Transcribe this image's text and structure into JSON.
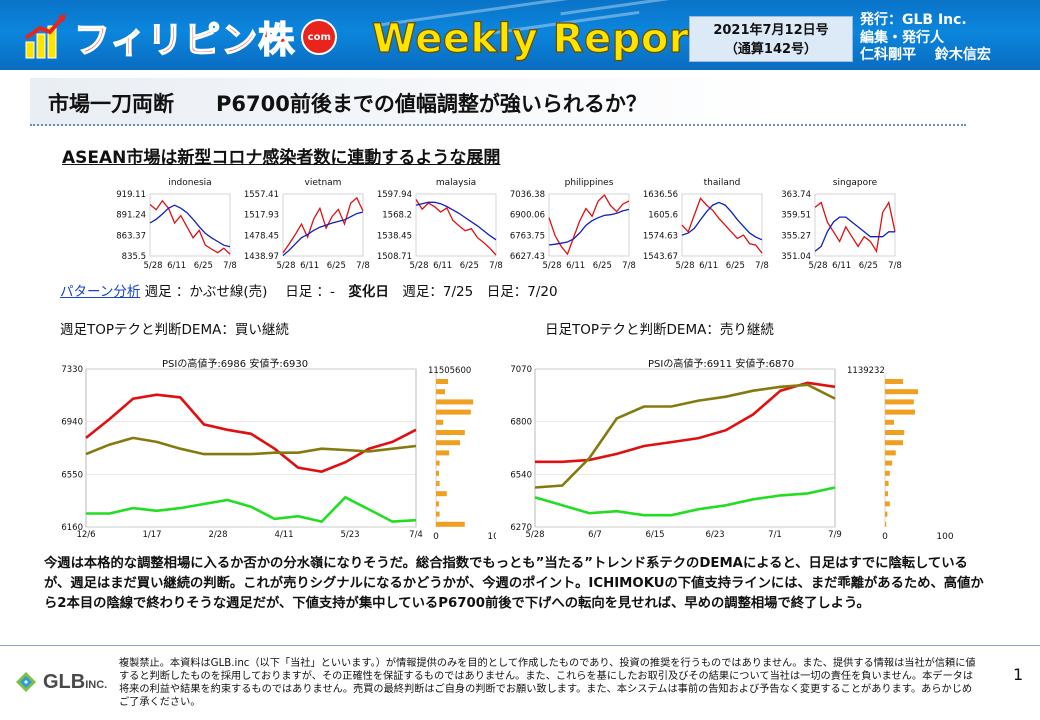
{
  "header": {
    "logo_text": "フィリピン株",
    "logo_badge": "com",
    "report_title": "Weekly Report",
    "issue_date": "2021年7月12日号",
    "issue_number": "（通算142号）",
    "publisher_line1": "発行：GLB Inc.",
    "publisher_line2": "編集・発行人",
    "publisher_line3": "仁科剛平　 鈴木信宏"
  },
  "headline": "市場一刀両断　　P6700前後までの値幅調整が強いられるか？",
  "section_title": "ASEAN市場は新型コロナ感染者数に連動するような展開",
  "colors": {
    "red": "#e01010",
    "blue": "#1020c0",
    "olive": "#857a10",
    "green": "#22dd22",
    "orange": "#f0a020",
    "banner": "#0b7fd6"
  },
  "pattern": {
    "link": "パターン分析",
    "weekly_label": " 週足 ：かぶせ線(売)　 日足 ：-　",
    "change_label": "変化日",
    "change_dates": "　週足：7/25　日足：7/20"
  },
  "panels": {
    "left_label": "週足TOPテクと判断DEMA：買い継続",
    "right_label": "日足TOPテクと判断DEMA：売り継続",
    "left_psi": "PSIの高値予:6986 安値予:6930",
    "right_psi": "PSIの高値予:6911 安値予:6870"
  },
  "chart_data": [
    {
      "type": "line",
      "title": "indonesia",
      "x_ticks": [
        "5/28",
        "6/11",
        "6/25",
        "7/8"
      ],
      "y_ticks": [
        "919.11",
        "891.24",
        "863.37",
        "835.5"
      ],
      "ylim": [
        835.5,
        919.11
      ],
      "series": [
        {
          "values": [
            905,
            898,
            910,
            900,
            880,
            890,
            875,
            860,
            870,
            850,
            845,
            840,
            846,
            838
          ]
        },
        {
          "values": [
            880,
            885,
            892,
            900,
            904,
            900,
            894,
            885,
            875,
            866,
            860,
            855,
            850,
            848
          ]
        }
      ]
    },
    {
      "type": "line",
      "title": "vietnam",
      "x_ticks": [
        "5/28",
        "6/11",
        "6/25",
        "7/8"
      ],
      "y_ticks": [
        "1557.41",
        "1517.93",
        "1478.45",
        "1438.97"
      ],
      "ylim": [
        1438.97,
        1557.41
      ],
      "series": [
        {
          "values": [
            1445,
            1462,
            1480,
            1500,
            1475,
            1510,
            1530,
            1492,
            1515,
            1528,
            1500,
            1540,
            1550,
            1525
          ]
        },
        {
          "values": [
            1440,
            1450,
            1462,
            1474,
            1480,
            1488,
            1494,
            1498,
            1502,
            1505,
            1508,
            1514,
            1520,
            1523
          ]
        }
      ]
    },
    {
      "type": "line",
      "title": "malaysia",
      "x_ticks": [
        "5/28",
        "6/11",
        "6/25",
        "7/8"
      ],
      "y_ticks": [
        "1597.94",
        "1568.2",
        "1538.45",
        "1508.71"
      ],
      "ylim": [
        1508.71,
        1597.94
      ],
      "series": [
        {
          "values": [
            1590,
            1576,
            1585,
            1580,
            1572,
            1578,
            1560,
            1552,
            1545,
            1548,
            1535,
            1528,
            1520,
            1510
          ]
        },
        {
          "values": [
            1582,
            1584,
            1586,
            1586,
            1584,
            1580,
            1575,
            1570,
            1564,
            1558,
            1552,
            1545,
            1538,
            1532
          ]
        }
      ]
    },
    {
      "type": "line",
      "title": "philippines",
      "x_ticks": [
        "5/28",
        "6/11",
        "6/25",
        "7/8"
      ],
      "y_ticks": [
        "7036.38",
        "6900.06",
        "6763.75",
        "6627.43"
      ],
      "ylim": [
        6627.43,
        7036.38
      ],
      "series": [
        {
          "values": [
            6880,
            6760,
            6690,
            6640,
            6750,
            6860,
            6940,
            6890,
            6990,
            7030,
            6960,
            6920,
            6970,
            6990
          ]
        },
        {
          "values": [
            6700,
            6705,
            6712,
            6720,
            6740,
            6780,
            6830,
            6860,
            6880,
            6895,
            6900,
            6910,
            6925,
            6935
          ]
        }
      ]
    },
    {
      "type": "line",
      "title": "thailand",
      "x_ticks": [
        "5/28",
        "6/11",
        "6/25",
        "7/8"
      ],
      "y_ticks": [
        "1636.56",
        "1605.6",
        "1574.63",
        "1543.67"
      ],
      "ylim": [
        1543.67,
        1636.56
      ],
      "series": [
        {
          "values": [
            1590,
            1580,
            1605,
            1630,
            1620,
            1612,
            1600,
            1590,
            1580,
            1570,
            1575,
            1562,
            1560,
            1548
          ]
        },
        {
          "values": [
            1575,
            1578,
            1585,
            1598,
            1610,
            1620,
            1624,
            1620,
            1610,
            1598,
            1588,
            1578,
            1572,
            1568
          ]
        }
      ]
    },
    {
      "type": "line",
      "title": "singapore",
      "x_ticks": [
        "5/28",
        "6/11",
        "6/25",
        "7/8"
      ],
      "y_ticks": [
        "363.74",
        "359.51",
        "355.27",
        "351.04"
      ],
      "ylim": [
        351.04,
        363.74
      ],
      "series": [
        {
          "values": [
            361,
            362,
            358,
            356,
            354,
            357,
            355,
            353,
            355,
            354,
            352,
            360,
            362,
            356
          ]
        },
        {
          "values": [
            352,
            353,
            356,
            358,
            359,
            359,
            358,
            357,
            356,
            355,
            355,
            355,
            356,
            356
          ]
        }
      ]
    },
    {
      "type": "line",
      "title": "",
      "x_ticks": [
        "12/6",
        "1/17",
        "2/28",
        "4/11",
        "5/23",
        "7/4"
      ],
      "y_ticks": [
        "7330",
        "6940",
        "6550",
        "6160"
      ],
      "right_tick": "11505600",
      "ylim": [
        6160,
        7330
      ],
      "series": [
        {
          "values": [
            6820,
            6960,
            7110,
            7140,
            7120,
            6920,
            6880,
            6850,
            6740,
            6600,
            6570,
            6640,
            6740,
            6790,
            6880
          ]
        },
        {
          "values": [
            6700,
            6770,
            6820,
            6790,
            6740,
            6700,
            6700,
            6700,
            6710,
            6710,
            6740,
            6730,
            6720,
            6740,
            6760
          ]
        },
        {
          "values": [
            6260,
            6260,
            6300,
            6280,
            6300,
            6330,
            6360,
            6310,
            6220,
            6240,
            6200,
            6380,
            6290,
            6200,
            6210
          ]
        }
      ],
      "volume_profile": [
        20,
        15,
        62,
        58,
        12,
        48,
        40,
        22,
        6,
        5,
        6,
        18,
        5,
        6,
        48
      ]
    },
    {
      "type": "line",
      "title": "",
      "x_ticks": [
        "5/28",
        "6/7",
        "6/15",
        "6/23",
        "7/1",
        "7/9"
      ],
      "y_ticks": [
        "7070",
        "6800",
        "6540",
        "6270"
      ],
      "right_tick": "1139232",
      "ylim": [
        6270,
        7070
      ],
      "series": [
        {
          "values": [
            6600,
            6600,
            6610,
            6640,
            6680,
            6700,
            6720,
            6760,
            6840,
            6960,
            7000,
            6980
          ]
        },
        {
          "values": [
            6470,
            6480,
            6620,
            6820,
            6880,
            6880,
            6910,
            6930,
            6960,
            6980,
            6990,
            6920
          ]
        },
        {
          "values": [
            6420,
            6380,
            6340,
            6350,
            6330,
            6330,
            6360,
            6380,
            6410,
            6430,
            6440,
            6470
          ]
        }
      ],
      "volume_profile": [
        30,
        55,
        48,
        50,
        15,
        32,
        30,
        18,
        12,
        8,
        6,
        5,
        8,
        4,
        2
      ]
    }
  ],
  "body_text": "今週は本格的な調整相場に入るか否かの分水嶺になりそうだ。総合指数でもっとも”当たる”トレンド系テクのDEMAによると、日足はすでに陰転しているが、週足はまだ買い継続の判断。これが売りシグナルになるかどうかが、今週のポイント。ICHIMOKUの下値支持ラインには、まだ乖離があるため、高値から2本目の陰線で終わりそうな週足だが、下値支持が集中しているP6700前後で下げへの転向を見せれば、早めの調整相場で終了しよう。",
  "footer": {
    "company": "GLB",
    "company_suffix": "INC.",
    "disclaimer": "複製禁止。本資料はGLB.inc（以下「当社」といいます。）が情報提供のみを目的として作成したものであり、投資の推奨を行うものではありません。また、提供する情報は当社が信頼に値すると判断したものを採用しておりますが、その正確性を保証するものではありません。また、これらを基にしたお取引及びその結果について当社は一切の責任を負いません。本データは将来の利益や結果を約束するものではありません。売買の最終判断はご自身の判断でお願い致します。また、本システムは事前の告知および予告なく変更することがあります。あらかじめご了承ください。",
    "page_number": "1"
  }
}
